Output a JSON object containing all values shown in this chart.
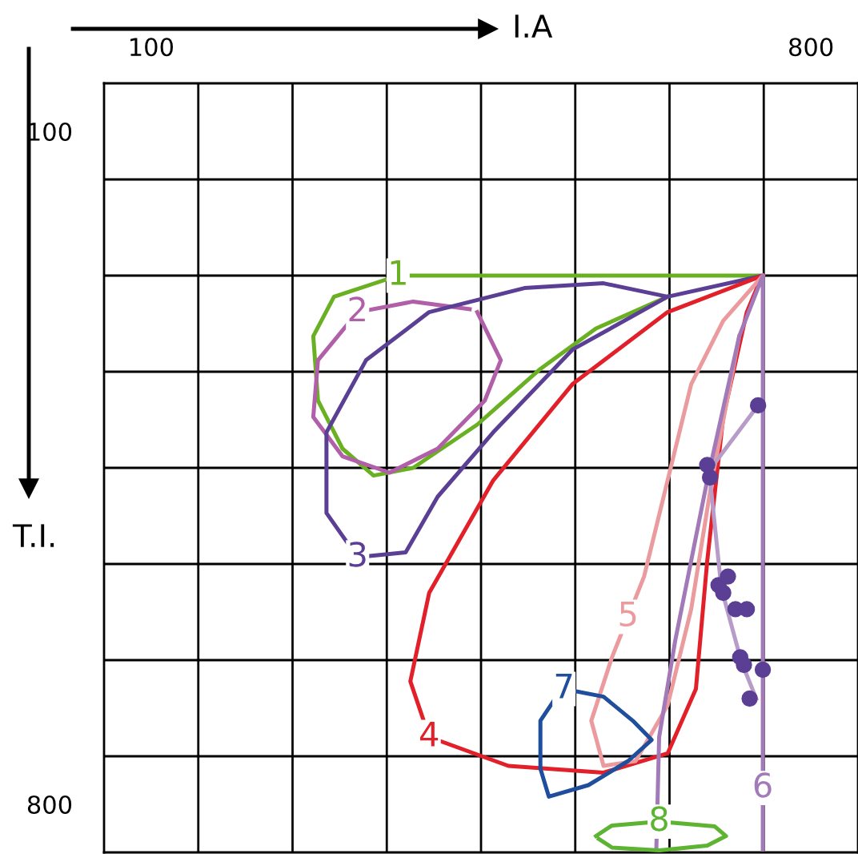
{
  "chart_data": {
    "type": "line",
    "xlabel": "I.A",
    "ylabel": "T.I.",
    "xlim": [
      50,
      850
    ],
    "ylim": [
      850,
      50
    ],
    "xticks": [
      {
        "value": 100,
        "label": "100"
      },
      {
        "value": 800,
        "label": "800"
      },
      {
        "value": 150,
        "label": null
      },
      {
        "value": 250,
        "label": null
      },
      {
        "value": 350,
        "label": null
      },
      {
        "value": 450,
        "label": null
      },
      {
        "value": 550,
        "label": null
      },
      {
        "value": 650,
        "label": null
      },
      {
        "value": 750,
        "label": null
      }
    ],
    "yticks": [
      {
        "value": 100,
        "label": "100"
      },
      {
        "value": 800,
        "label": "800"
      },
      {
        "value": 150,
        "label": null
      },
      {
        "value": 250,
        "label": null
      },
      {
        "value": 350,
        "label": null
      },
      {
        "value": 450,
        "label": null
      },
      {
        "value": 550,
        "label": null
      },
      {
        "value": 650,
        "label": null
      },
      {
        "value": 750,
        "label": null
      }
    ],
    "grid": true,
    "series": [
      {
        "color": "#6ab023",
        "x": [
          749,
          362,
          294,
          272,
          277,
          303,
          336,
          378,
          446,
          513,
          572,
          648
        ],
        "values": [
          250,
          250,
          272,
          313,
          380,
          430,
          458,
          450,
          405,
          347,
          305,
          272
        ]
      },
      {
        "color": "#b05fa8",
        "x": [
          446,
          471,
          454,
          404,
          353,
          303,
          272,
          277,
          319,
          378,
          438
        ],
        "values": [
          288,
          338,
          380,
          430,
          455,
          438,
          397,
          338,
          288,
          277,
          285
        ]
      },
      {
        "color": "#5b3f95",
        "x": [
          749,
          648,
          580,
          496,
          395,
          328,
          286,
          286,
          319,
          370,
          404,
          463,
          547,
          648
        ],
        "values": [
          250,
          272,
          258,
          263,
          288,
          338,
          413,
          497,
          543,
          538,
          480,
          413,
          327,
          272
        ]
      },
      {
        "color": "#e2202a",
        "x": [
          749,
          648,
          547,
          463,
          395,
          375,
          395,
          479,
          580,
          648,
          678,
          690,
          707,
          732,
          744
        ],
        "values": [
          250,
          288,
          363,
          463,
          580,
          672,
          730,
          760,
          767,
          747,
          680,
          547,
          397,
          288,
          260
        ]
      },
      {
        "color": "#eb9a9e",
        "x": [
          749,
          707,
          673,
          648,
          623,
          606,
          589,
          567,
          580,
          614,
          648,
          673,
          695,
          724
        ],
        "values": [
          250,
          297,
          363,
          463,
          563,
          605,
          647,
          713,
          760,
          755,
          697,
          597,
          463,
          313
        ]
      },
      {
        "color": "#a27ab8",
        "x": [
          749,
          749,
          749,
          724,
          690,
          656,
          639,
          636
        ],
        "values": [
          847,
          783,
          250,
          313,
          463,
          630,
          730,
          847
        ]
      },
      {
        "color": "#1f4e9c",
        "x": [
          538,
          580,
          611,
          631,
          606,
          564,
          522,
          513,
          513,
          530
        ],
        "values": [
          680,
          688,
          713,
          733,
          755,
          780,
          792,
          763,
          713,
          688
        ]
      },
      {
        "color": "#5db332",
        "x": [
          572,
          589,
          639,
          698,
          710,
          690,
          639,
          589,
          575
        ],
        "values": [
          833,
          822,
          818,
          823,
          833,
          843,
          848,
          845,
          836
        ]
      },
      {
        "color": "#b79cc9",
        "x": [
          744,
          692,
          705,
          726,
          742
        ],
        "values": [
          385,
          453,
          575,
          651,
          690
        ]
      },
      {
        "type": "scatter",
        "marker": "circle",
        "color": "#5b3f95",
        "x": [
          744,
          690,
          693,
          712,
          702,
          707,
          720,
          732,
          725,
          729,
          749,
          735
        ],
        "values": [
          385,
          447,
          460,
          563,
          572,
          580,
          597,
          597,
          647,
          655,
          660,
          690
        ]
      }
    ],
    "annotations": [
      {
        "text": "1",
        "x": 362,
        "y": 250
      },
      {
        "text": "2",
        "x": 319,
        "y": 288
      },
      {
        "text": "3",
        "x": 319,
        "y": 543
      },
      {
        "text": "4",
        "x": 395,
        "y": 730
      },
      {
        "text": "5",
        "x": 606,
        "y": 605
      },
      {
        "text": "6",
        "x": 749,
        "y": 783
      },
      {
        "text": "7",
        "x": 538,
        "y": 680
      },
      {
        "text": "8",
        "x": 639,
        "y": 818
      }
    ]
  }
}
